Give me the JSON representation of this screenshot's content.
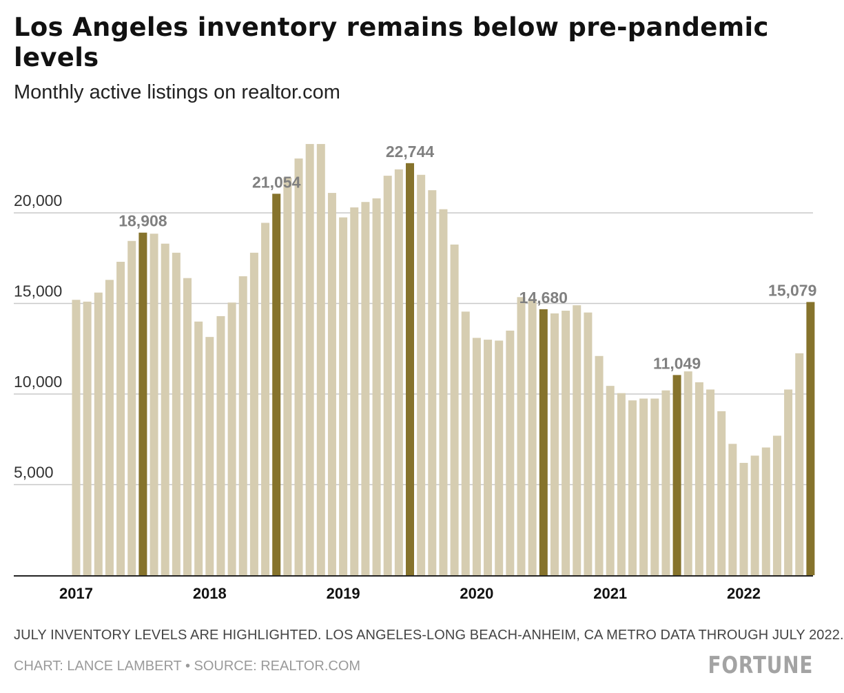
{
  "title": "Los Angeles inventory remains below pre-pandemic levels",
  "subtitle": "Monthly active listings on realtor.com",
  "note": "JULY INVENTORY LEVELS ARE HIGHLIGHTED. LOS ANGELES-LONG BEACH-ANHEIM, CA METRO DATA THROUGH JULY 2022.",
  "credit": "CHART: LANCE LAMBERT • SOURCE: REALTOR.COM",
  "logo": "FORTUNE",
  "colors": {
    "base": "#d6cdb1",
    "highlight": "#86732c",
    "grid": "#c8c8c8",
    "axis": "#222222",
    "label": "#808080"
  },
  "chart_data": {
    "type": "bar",
    "title": "Los Angeles inventory remains below pre-pandemic levels",
    "subtitle": "Monthly active listings on realtor.com",
    "ylim": [
      0,
      25000
    ],
    "yticks": [
      5000,
      10000,
      15000,
      20000
    ],
    "ytick_labels": [
      "5,000",
      "10,000",
      "15,000",
      "20,000"
    ],
    "grid": true,
    "year_labels": [
      {
        "label": "2017",
        "index": 0
      },
      {
        "label": "2018",
        "index": 12
      },
      {
        "label": "2019",
        "index": 24
      },
      {
        "label": "2020",
        "index": 36
      },
      {
        "label": "2021",
        "index": 48
      },
      {
        "label": "2022",
        "index": 60
      }
    ],
    "values": [
      15200,
      15100,
      15600,
      16300,
      17300,
      18450,
      18908,
      18850,
      18300,
      17800,
      16400,
      14000,
      13150,
      14300,
      15050,
      16500,
      17800,
      19450,
      21054,
      21950,
      23000,
      23800,
      23800,
      21100,
      19750,
      20300,
      20600,
      20800,
      22050,
      22400,
      22744,
      22100,
      21250,
      20200,
      18250,
      14550,
      13100,
      13000,
      12950,
      13500,
      15350,
      15250,
      14680,
      14450,
      14600,
      14900,
      14500,
      12100,
      10450,
      10050,
      9650,
      9750,
      9750,
      10200,
      11049,
      11250,
      10650,
      10250,
      9050,
      7250,
      6200,
      6600,
      7050,
      7700,
      10250,
      12250,
      15079
    ],
    "highlight_indices": [
      6,
      18,
      30,
      42,
      54,
      66
    ],
    "data_labels": [
      {
        "index": 6,
        "text": "18,908"
      },
      {
        "index": 18,
        "text": "21,054"
      },
      {
        "index": 30,
        "text": "22,744"
      },
      {
        "index": 42,
        "text": "14,680"
      },
      {
        "index": 54,
        "text": "11,049"
      },
      {
        "index": 66,
        "text": "15,079"
      }
    ]
  }
}
